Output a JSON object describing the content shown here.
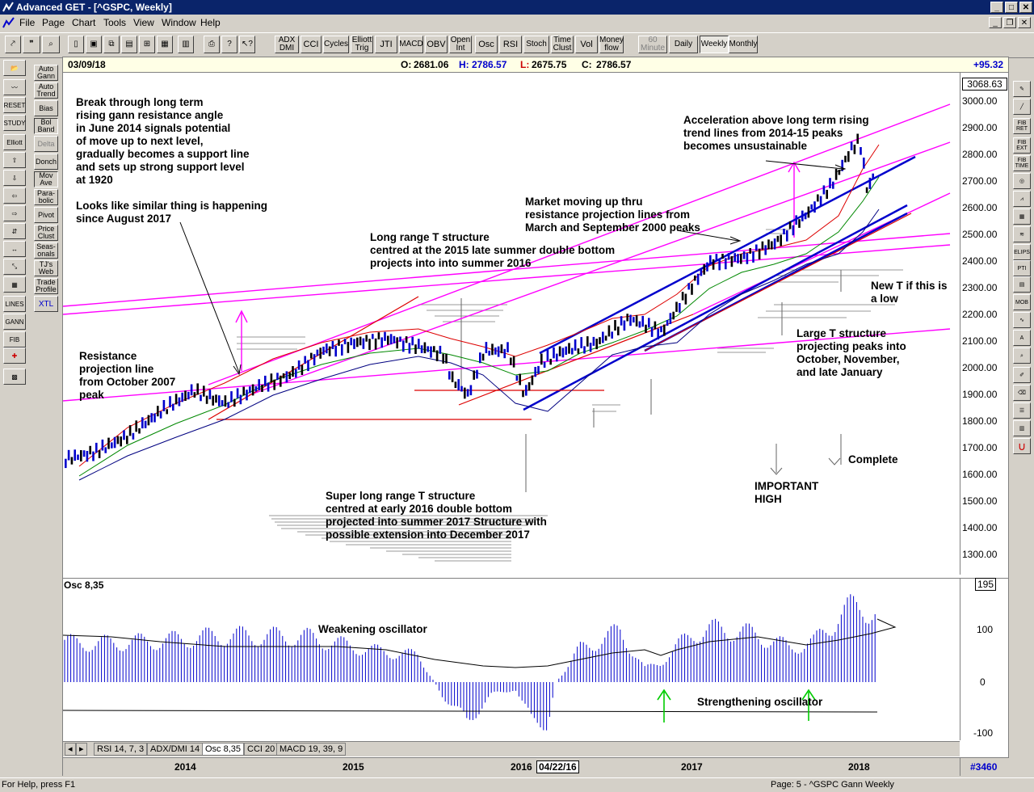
{
  "window": {
    "title": "Advanced GET - [^GSPC, Weekly]"
  },
  "menu": [
    "File",
    "Page",
    "Chart",
    "Tools",
    "View",
    "Window",
    "Help"
  ],
  "toolbar": {
    "studies": [
      "ADX DMI",
      "CCI",
      "Cycles",
      "Elliott Trig",
      "JTI",
      "MACD",
      "OBV",
      "Open Int",
      "Osc",
      "RSI",
      "Stoch",
      "Time Clust",
      "Vol",
      "Money flow"
    ],
    "periods": [
      "60 Minute",
      "Daily",
      "Weekly",
      "Monthly"
    ],
    "selected_period": "Weekly"
  },
  "study_buttons": [
    "Auto Gann",
    "Auto Trend",
    "Bias",
    "Bol Band",
    "Delta",
    "Donch",
    "Mov Ave",
    "Para-bolic",
    "Pivot",
    "Price Clust",
    "Seas-onals",
    "TJ's Web",
    "Trade Profile",
    "XTL"
  ],
  "left_tools": [
    "RESET",
    "STUDY",
    "Elliott",
    "LINES",
    "GANN",
    "FIB"
  ],
  "right_tools": [
    "FIB RET",
    "FIB EXT",
    "FIB TIME",
    "ELIPS",
    "PTI",
    "MOB"
  ],
  "chart_header": {
    "date": "03/09/18",
    "open_label": "O:",
    "open": "2681.06",
    "high_label": "H:",
    "high": "2786.57",
    "low_label": "L:",
    "low": "2675.75",
    "close_label": "C:",
    "close": "2786.57",
    "change": "+95.32"
  },
  "price_axis": {
    "last_price": "3068.63",
    "ticks": [
      "3000.00",
      "2900.00",
      "2800.00",
      "2700.00",
      "2600.00",
      "2500.00",
      "2400.00",
      "2300.00",
      "2200.00",
      "2100.00",
      "2000.00",
      "1900.00",
      "1800.00",
      "1700.00",
      "1600.00",
      "1500.00",
      "1400.00",
      "1300.00"
    ]
  },
  "osc_panel": {
    "label": "Osc 8,35",
    "axis_top": "195",
    "ticks": [
      "100",
      "0",
      "-100"
    ]
  },
  "annotations": {
    "break_through": "Break through long term\nrising gann resistance angle\nin June 2014 signals potential\nof move up to next level,\ngradually becomes a support line\nand sets up strong support level\nat 1920",
    "similar_thing": "Looks like similar thing is happening\nsince August 2017",
    "resistance_line": "Resistance\nprojection line\nfrom October 2007\npeak",
    "long_range_t": "Long range T structure\ncentred at the 2015 late summer double bottom\nprojects into into summer 2016",
    "market_moving": "Market moving up thru\nresistance projection lines from\nMarch and September 2000 peaks",
    "acceleration": "Acceleration above long term rising\ntrend lines from 2014-15 peaks\nbecomes unsustainable",
    "new_t": "New T if this is\na low",
    "large_t": "Large T structure\nprojecting peaks into\nOctober, November,\nand late January",
    "complete": "Complete",
    "important_high": "IMPORTANT\nHIGH",
    "super_long_t": "Super long range T structure\ncentred at early 2016 double bottom\nprojected into summer 2017 Structure with\npossible extension into December 2017",
    "weakening": "Weakening oscillator",
    "strengthening": "Strengthening oscillator"
  },
  "tabs": [
    "RSI 14, 7, 3",
    "ADX/DMI 14",
    "Osc 8,35",
    "CCI 20",
    "MACD 19, 39, 9"
  ],
  "selected_tab": "Osc 8,35",
  "date_axis": {
    "years": [
      "2014",
      "2015",
      "2016",
      "2017",
      "2018"
    ],
    "cursor_date": "04/22/16",
    "bar_count": "#3460"
  },
  "status": {
    "left": "For Help, press F1",
    "right": "Page: 5 - ^GSPC Gann Weekly"
  },
  "colors": {
    "trend_line": "#0000cc",
    "projection_line": "#ff00ff",
    "ma_red": "#dd0000",
    "ma_green": "#008800",
    "ma_navy": "#000080",
    "osc_bar": "#0000cc",
    "arrow_green": "#00cc00"
  }
}
